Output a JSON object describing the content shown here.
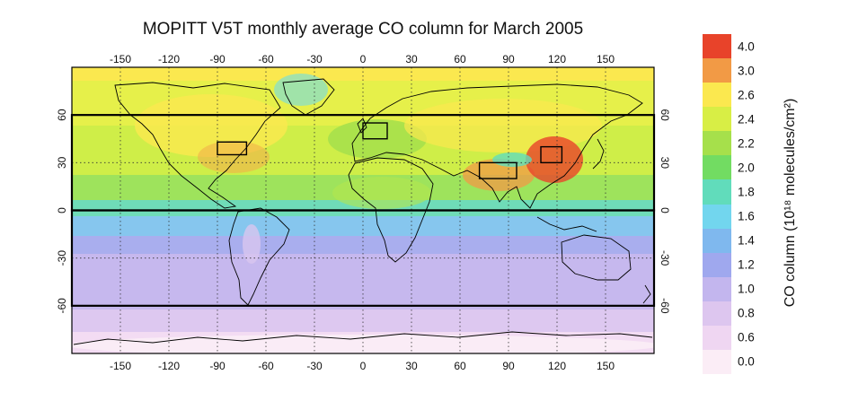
{
  "title": "MOPITT V5T monthly average CO column for March 2005",
  "map": {
    "lon_ticks": [
      "-150",
      "-120",
      "-90",
      "-60",
      "-30",
      "0",
      "30",
      "60",
      "90",
      "120",
      "150"
    ],
    "lat_ticks": [
      "60",
      "30",
      "0",
      "-30",
      "-60"
    ],
    "lon_range": [
      -180,
      180
    ],
    "lat_range": [
      -90,
      90
    ],
    "grid": "dotted",
    "regions": [
      {
        "name": "eastern US",
        "lon": [
          -90,
          -72
        ],
        "lat": [
          35,
          43
        ]
      },
      {
        "name": "Europe",
        "lon": [
          0,
          15
        ],
        "lat": [
          45,
          55
        ]
      },
      {
        "name": "India",
        "lon": [
          72,
          95
        ],
        "lat": [
          20,
          30
        ]
      },
      {
        "name": "eastern China",
        "lon": [
          110,
          123
        ],
        "lat": [
          30,
          40
        ]
      }
    ],
    "bands": [
      {
        "name": "northern extratropics",
        "lat": [
          0,
          60
        ]
      },
      {
        "name": "southern hemisphere",
        "lat": [
          -60,
          0
        ]
      }
    ]
  },
  "colorbar": {
    "labels": [
      "4.0",
      "3.0",
      "2.6",
      "2.4",
      "2.2",
      "2.0",
      "1.8",
      "1.6",
      "1.4",
      "1.2",
      "1.0",
      "0.8",
      "0.6",
      "0.0"
    ],
    "colors": [
      "#e8432a",
      "#f29a45",
      "#fbe84f",
      "#d8ee45",
      "#a6e04b",
      "#72dc62",
      "#61dcbb",
      "#72d6ee",
      "#7fb8ee",
      "#9fa8ee",
      "#c3b6ee",
      "#ddc6ef",
      "#efd6f2",
      "#fbedf6"
    ],
    "title": "CO column (10¹⁸ molecules/cm²)"
  }
}
